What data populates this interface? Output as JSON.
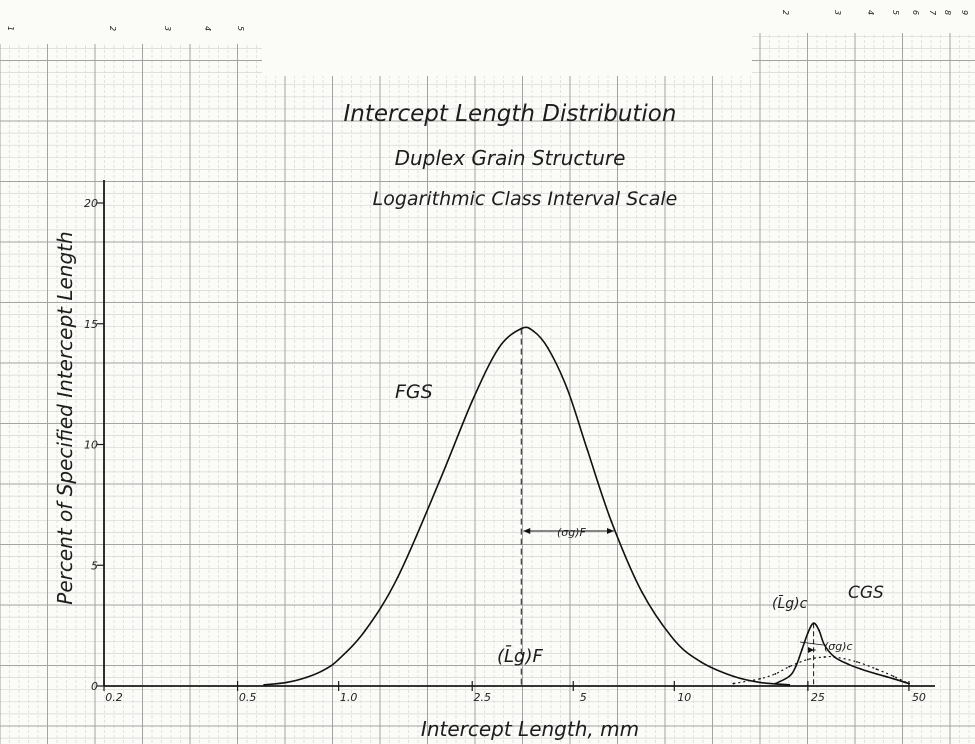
{
  "chart_data": {
    "type": "line",
    "title_lines": [
      "Intercept Length Distribution",
      "Duplex Grain Structure",
      "Logarithmic Class Interval Scale"
    ],
    "xlabel": "Intercept Length, mm",
    "ylabel": "Percent of Specified Intercept Length",
    "x_scale": "log",
    "xlim": [
      0.2,
      70
    ],
    "ylim": [
      0,
      22
    ],
    "x_ticks": [
      0.2,
      0.5,
      1.0,
      2.5,
      5,
      10,
      25,
      50
    ],
    "x_tick_labels": [
      "0.2",
      "0.5",
      "1.0",
      "2.5",
      "5",
      "10",
      "25",
      "50"
    ],
    "y_ticks": [
      0,
      5,
      10,
      15,
      20
    ],
    "y_tick_labels": [
      "0",
      "5",
      "10",
      "15",
      "20"
    ],
    "grid": true,
    "series": [
      {
        "name": "FGS",
        "style": "solid",
        "x": [
          0.6,
          0.7,
          0.8,
          0.9,
          1.0,
          1.2,
          1.5,
          2.0,
          2.5,
          3.0,
          3.5,
          3.8,
          4.2,
          4.8,
          5.5,
          6.5,
          8.0,
          10.0,
          12.0,
          15.0,
          18.0,
          22.0
        ],
        "y": [
          0.05,
          0.15,
          0.35,
          0.65,
          1.1,
          2.3,
          4.5,
          8.5,
          11.8,
          14.0,
          14.8,
          14.7,
          14.0,
          12.3,
          9.8,
          6.8,
          3.9,
          1.9,
          1.0,
          0.4,
          0.15,
          0.05
        ]
      },
      {
        "name": "CGS",
        "style": "solid",
        "x": [
          20,
          22,
          23,
          24,
          25,
          26,
          27,
          28,
          30,
          33,
          36,
          40,
          45,
          50
        ],
        "y": [
          0.1,
          0.4,
          0.8,
          1.5,
          2.2,
          2.6,
          2.3,
          1.7,
          1.2,
          0.9,
          0.7,
          0.5,
          0.3,
          0.1
        ]
      },
      {
        "name": "",
        "style": "dotted",
        "x": [
          15,
          18,
          20,
          22,
          25,
          28,
          30,
          35,
          40,
          45,
          50
        ],
        "y": [
          0.1,
          0.3,
          0.5,
          0.8,
          1.1,
          1.2,
          1.2,
          1.0,
          0.7,
          0.4,
          0.1
        ]
      }
    ],
    "annotations": [
      {
        "id": "fgs",
        "text": "FGS"
      },
      {
        "id": "cgs",
        "text": "CGS"
      },
      {
        "id": "lg_f",
        "text": "(L̄g)F"
      },
      {
        "id": "sigma_f",
        "text": "(σg)F"
      },
      {
        "id": "lg_c",
        "text": "(L̄g)c"
      },
      {
        "id": "sigma_c",
        "text": "(σg)c"
      }
    ],
    "edge_scale_top_left": [
      "1",
      "2",
      "3",
      "4",
      "5"
    ],
    "edge_scale_top_right": [
      "2",
      "3",
      "4",
      "5",
      "6",
      "7",
      "8",
      "9"
    ]
  }
}
